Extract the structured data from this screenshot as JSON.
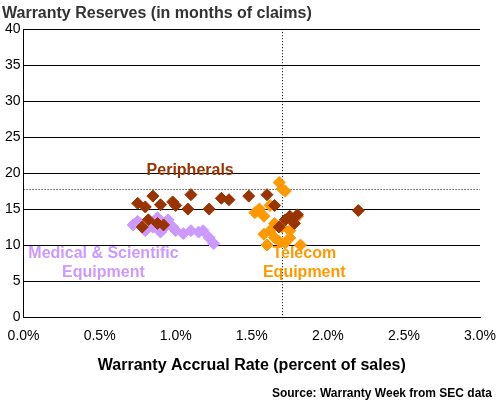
{
  "chart_data": {
    "type": "scatter",
    "title": "Warranty Reserves (in months of claims)",
    "x_label": "Warranty Accrual Rate (percent of sales)",
    "source": "Source: Warranty Week from SEC data",
    "xlim": [
      0,
      3
    ],
    "xticks": [
      {
        "value": 0,
        "label": "0.0%"
      },
      {
        "value": 0.5,
        "label": "0.5%"
      },
      {
        "value": 1,
        "label": "1.0%"
      },
      {
        "value": 1.5,
        "label": "1.5%"
      },
      {
        "value": 2,
        "label": "2.0%"
      },
      {
        "value": 2.5,
        "label": "2.5%"
      },
      {
        "value": 3,
        "label": "3.0%"
      }
    ],
    "ylim": [
      0,
      40
    ],
    "yticks": [
      0,
      5,
      10,
      15,
      20,
      25,
      30,
      35,
      40
    ],
    "grid": true,
    "legend": false,
    "reference_lines": {
      "x": 1.7,
      "y": 17.8,
      "line_style": "dotted"
    },
    "series": [
      {
        "name": "Peripherals",
        "color": "#993300",
        "marker": "diamond",
        "x": [
          0.75,
          0.8,
          0.78,
          0.82,
          0.85,
          0.88,
          0.9,
          0.92,
          0.98,
          1.0,
          1.08,
          1.1,
          1.22,
          1.3,
          1.35,
          1.48,
          1.6,
          1.65,
          1.72,
          1.75,
          1.78,
          1.8,
          1.68,
          2.2
        ],
        "values": [
          15.8,
          15.3,
          12.5,
          13.5,
          16.8,
          13.0,
          15.6,
          12.8,
          16.0,
          15.5,
          15.0,
          17.0,
          15.0,
          16.5,
          16.3,
          16.8,
          17.0,
          15.5,
          13.5,
          14.0,
          13.0,
          14.2,
          12.5,
          14.8
        ]
      },
      {
        "name": "Medical & Scientific\nEquipment",
        "color": "#CC99FF",
        "marker": "diamond",
        "x": [
          0.72,
          0.75,
          0.8,
          0.85,
          0.85,
          0.88,
          0.9,
          0.92,
          0.95,
          0.98,
          1.0,
          1.05,
          1.1,
          1.15,
          1.18,
          1.22,
          1.25
        ],
        "values": [
          12.8,
          13.3,
          12.0,
          12.5,
          13.2,
          13.8,
          11.8,
          12.3,
          13.5,
          12.5,
          12.0,
          11.6,
          12.0,
          11.8,
          12.0,
          11.0,
          10.2
        ]
      },
      {
        "name": "Telecom\nEquipment",
        "color": "#FF9900",
        "marker": "diamond",
        "x": [
          1.52,
          1.55,
          1.58,
          1.58,
          1.6,
          1.62,
          1.62,
          1.65,
          1.65,
          1.68,
          1.68,
          1.7,
          1.7,
          1.72,
          1.72,
          1.75,
          1.75,
          1.78,
          1.8,
          1.82
        ],
        "values": [
          14.5,
          15.0,
          11.5,
          14.0,
          10.0,
          12.0,
          15.5,
          13.0,
          11.0,
          18.7,
          10.5,
          17.8,
          12.5,
          17.5,
          10.3,
          11.0,
          12.0,
          13.5,
          14.0,
          10.0
        ]
      }
    ]
  }
}
